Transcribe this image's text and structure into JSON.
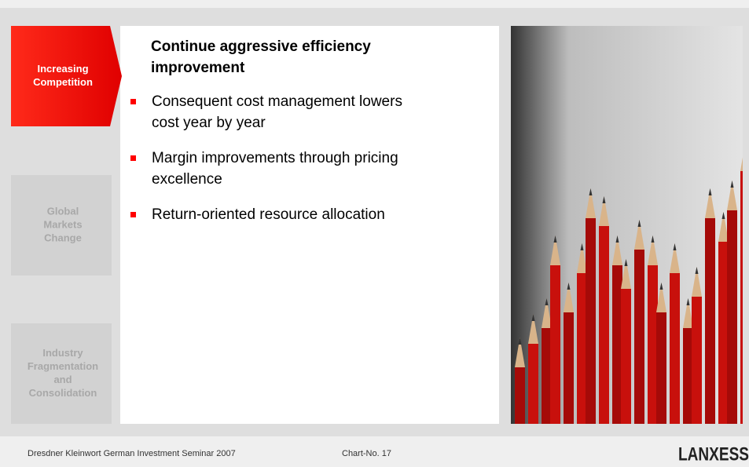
{
  "tabs": [
    {
      "lines": [
        "Increasing",
        "Competition"
      ],
      "active": true
    },
    {
      "lines": [
        "Global",
        "Markets",
        "Change"
      ],
      "active": false
    },
    {
      "lines": [
        "Industry",
        "Fragmentation",
        "and",
        "Consolidation"
      ],
      "active": false
    }
  ],
  "content": {
    "title_lines": [
      "Continue aggressive efficiency",
      "improvement"
    ],
    "bullets": [
      [
        "Consequent cost management lowers",
        "cost year by year"
      ],
      [
        "Margin improvements through pricing",
        "excellence"
      ],
      [
        "Return-oriented resource allocation"
      ]
    ]
  },
  "footer": {
    "event": "Dresdner Kleinwort German Investment Seminar 2007",
    "chart_no": "Chart-No. 17",
    "logo": "LANXESS"
  }
}
